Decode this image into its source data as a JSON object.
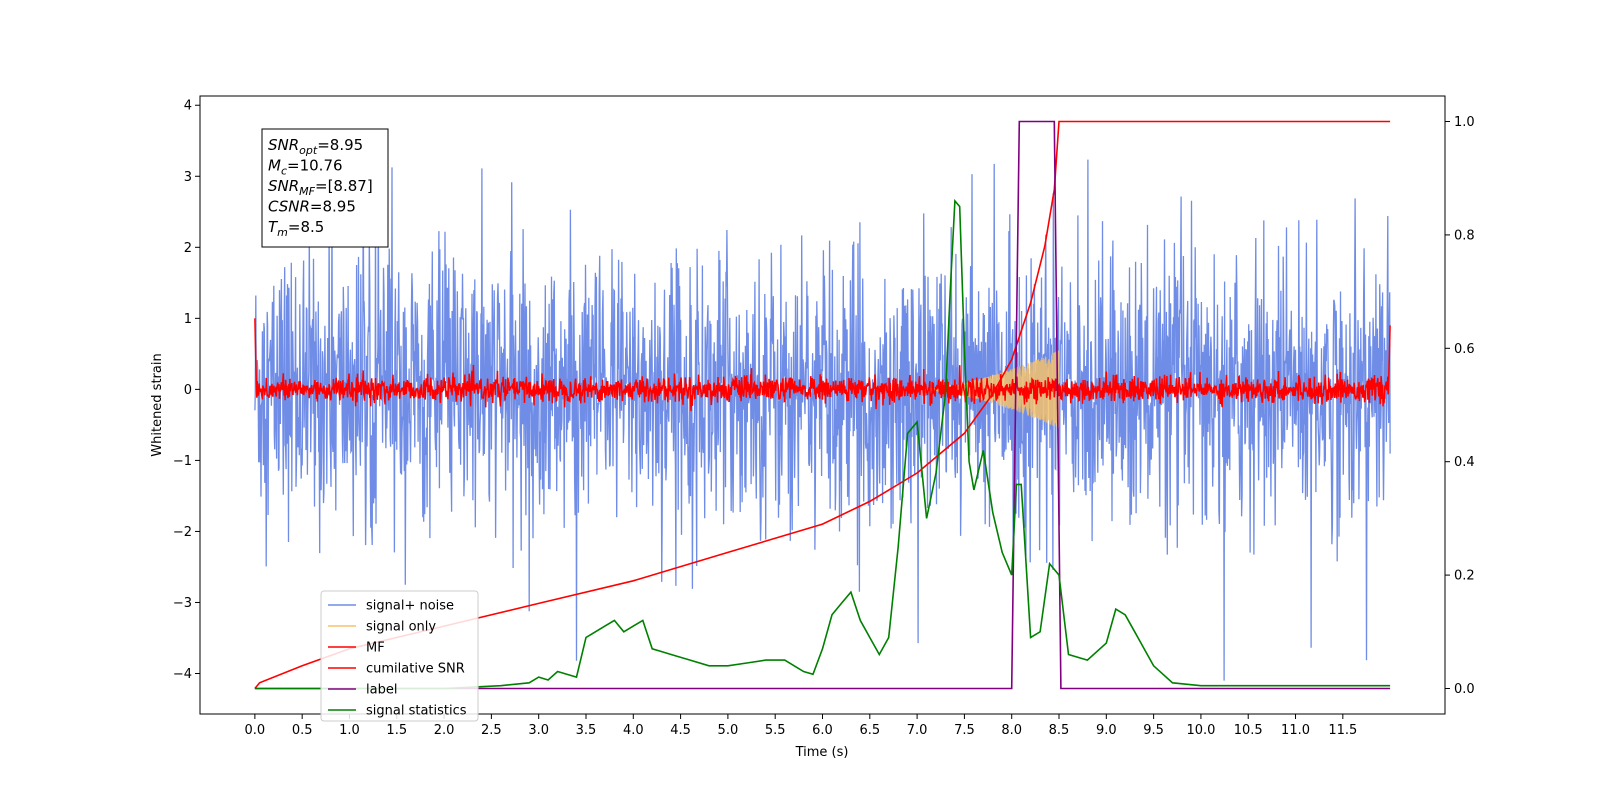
{
  "chart_data": {
    "type": "line",
    "xlabel": "Time (s)",
    "ylabel": "Whitened strain",
    "xlim": [
      -0.58,
      12.58
    ],
    "ylim": [
      -4.57,
      4.13
    ],
    "y2lim": [
      -0.045,
      1.045
    ],
    "x_ticks": [
      "0.0",
      "0.5",
      "1.0",
      "1.5",
      "2.0",
      "2.5",
      "3.0",
      "3.5",
      "4.0",
      "4.5",
      "5.0",
      "5.5",
      "6.0",
      "6.5",
      "7.0",
      "7.5",
      "8.0",
      "8.5",
      "9.0",
      "9.5",
      "10.0",
      "10.5",
      "11.0",
      "11.5"
    ],
    "y_ticks": [
      "−4",
      "−3",
      "−2",
      "−1",
      "0",
      "1",
      "2",
      "3",
      "4"
    ],
    "y2_ticks": [
      "0.0",
      "0.2",
      "0.4",
      "0.6",
      "0.8",
      "1.0"
    ],
    "grid": false,
    "legend_position": "lower-left",
    "stats_box": [
      {
        "sym": "SNR",
        "sub": "opt",
        "val": "=8.95"
      },
      {
        "sym": "M",
        "sub": "c",
        "val": "=10.76"
      },
      {
        "sym": "SNR",
        "sub": "MF",
        "val": "=[8.87]"
      },
      {
        "sym": "CSNR",
        "sub": "",
        "val": "=8.95"
      },
      {
        "sym": "T",
        "sub": "m",
        "val": "=8.5"
      }
    ],
    "series": [
      {
        "name": "signal+ noise",
        "color": "#6f8de6",
        "axis": "left",
        "kind": "noise",
        "x_range": [
          0,
          12
        ],
        "approx_range": [
          -4.1,
          3.75
        ]
      },
      {
        "name": "signal only",
        "color": "#f5c16c",
        "axis": "left",
        "kind": "chirp",
        "x_range": [
          7.0,
          8.5
        ],
        "envelope_max": 0.55
      },
      {
        "name": "MF",
        "color": "#ff0000",
        "axis": "left",
        "kind": "noise",
        "x_range": [
          0,
          12
        ],
        "approx_range": [
          -0.2,
          1.0
        ]
      },
      {
        "name": "cumilative SNR",
        "color": "#ff0000",
        "axis": "right",
        "x": [
          0.0,
          0.05,
          0.5,
          1.0,
          2.0,
          3.0,
          4.0,
          5.0,
          6.0,
          6.5,
          7.0,
          7.5,
          7.8,
          8.0,
          8.2,
          8.35,
          8.45,
          8.5,
          12.0
        ],
        "values": [
          0.0,
          0.01,
          0.04,
          0.07,
          0.11,
          0.15,
          0.19,
          0.24,
          0.29,
          0.33,
          0.38,
          0.45,
          0.52,
          0.58,
          0.68,
          0.78,
          0.88,
          1.0,
          1.0
        ]
      },
      {
        "name": "label",
        "color": "#800080",
        "axis": "right",
        "x": [
          0.0,
          8.0,
          8.08,
          8.45,
          8.52,
          12.0
        ],
        "values": [
          0.0,
          0.0,
          1.0,
          1.0,
          0.0,
          0.0
        ]
      },
      {
        "name": "signal statistics",
        "color": "#008000",
        "axis": "right",
        "x": [
          0.0,
          1.0,
          2.0,
          2.6,
          2.9,
          3.0,
          3.1,
          3.2,
          3.4,
          3.5,
          3.6,
          3.7,
          3.8,
          3.9,
          4.0,
          4.1,
          4.2,
          4.3,
          4.4,
          4.6,
          4.8,
          5.0,
          5.2,
          5.4,
          5.6,
          5.8,
          5.9,
          6.0,
          6.1,
          6.2,
          6.3,
          6.4,
          6.5,
          6.6,
          6.7,
          6.8,
          6.9,
          7.0,
          7.1,
          7.2,
          7.3,
          7.35,
          7.4,
          7.45,
          7.5,
          7.55,
          7.6,
          7.7,
          7.8,
          7.9,
          8.0,
          8.05,
          8.1,
          8.2,
          8.3,
          8.4,
          8.5,
          8.6,
          8.8,
          9.0,
          9.1,
          9.2,
          9.3,
          9.5,
          9.7,
          10.0,
          10.5,
          11.0,
          11.5,
          12.0
        ],
        "values": [
          0.0,
          0.0,
          0.0,
          0.005,
          0.01,
          0.02,
          0.015,
          0.03,
          0.02,
          0.09,
          0.1,
          0.11,
          0.12,
          0.1,
          0.11,
          0.12,
          0.07,
          0.065,
          0.06,
          0.05,
          0.04,
          0.04,
          0.045,
          0.05,
          0.05,
          0.03,
          0.025,
          0.07,
          0.13,
          0.15,
          0.17,
          0.12,
          0.09,
          0.06,
          0.09,
          0.25,
          0.45,
          0.47,
          0.3,
          0.38,
          0.52,
          0.7,
          0.86,
          0.85,
          0.6,
          0.4,
          0.35,
          0.42,
          0.31,
          0.24,
          0.2,
          0.36,
          0.36,
          0.09,
          0.1,
          0.22,
          0.2,
          0.06,
          0.05,
          0.08,
          0.14,
          0.13,
          0.1,
          0.04,
          0.01,
          0.005,
          0.005,
          0.005,
          0.005,
          0.005
        ]
      }
    ]
  }
}
